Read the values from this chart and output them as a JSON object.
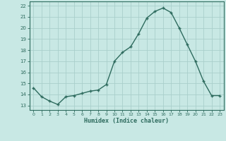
{
  "x": [
    0,
    1,
    2,
    3,
    4,
    5,
    6,
    7,
    8,
    9,
    10,
    11,
    12,
    13,
    14,
    15,
    16,
    17,
    18,
    19,
    20,
    21,
    22,
    23
  ],
  "y": [
    14.6,
    13.8,
    13.4,
    13.1,
    13.8,
    13.9,
    14.1,
    14.3,
    14.4,
    14.9,
    17.0,
    17.8,
    18.3,
    19.5,
    20.9,
    21.5,
    21.8,
    21.4,
    20.0,
    18.5,
    17.0,
    15.2,
    13.9,
    13.9
  ],
  "line_color": "#2e6b5e",
  "bg_color": "#c8e8e4",
  "grid_color": "#aacfcb",
  "xlabel": "Humidex (Indice chaleur)",
  "ylabel_ticks": [
    13,
    14,
    15,
    16,
    17,
    18,
    19,
    20,
    21,
    22
  ],
  "xlim": [
    -0.5,
    23.5
  ],
  "ylim": [
    12.6,
    22.4
  ],
  "marker": "+"
}
